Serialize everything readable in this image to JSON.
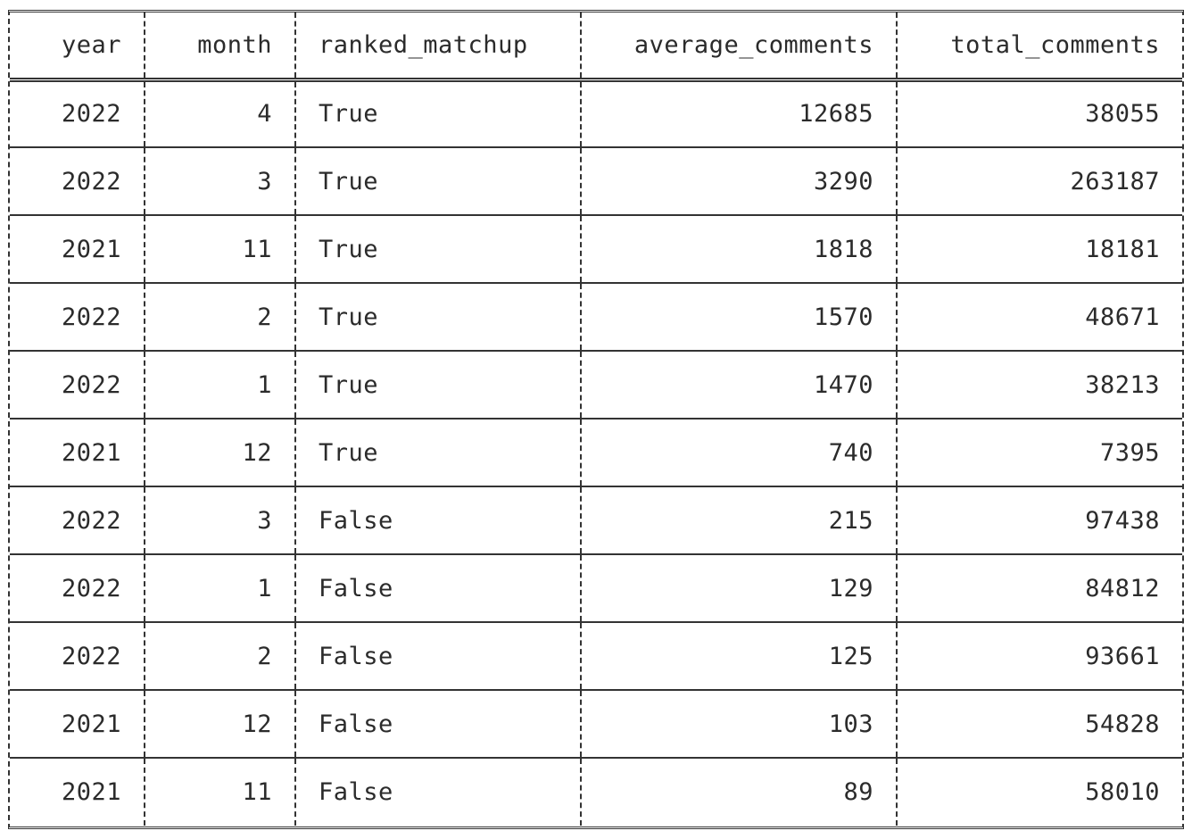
{
  "table": {
    "headers": [
      "year",
      "month",
      "ranked_matchup",
      "average_comments",
      "total_comments"
    ],
    "rows": [
      [
        "2022",
        "4",
        "True",
        "12685",
        "38055"
      ],
      [
        "2022",
        "3",
        "True",
        "3290",
        "263187"
      ],
      [
        "2021",
        "11",
        "True",
        "1818",
        "18181"
      ],
      [
        "2022",
        "2",
        "True",
        "1570",
        "48671"
      ],
      [
        "2022",
        "1",
        "True",
        "1470",
        "38213"
      ],
      [
        "2021",
        "12",
        "True",
        "740",
        "7395"
      ],
      [
        "2022",
        "3",
        "False",
        "215",
        "97438"
      ],
      [
        "2022",
        "1",
        "False",
        "129",
        "84812"
      ],
      [
        "2022",
        "2",
        "False",
        "125",
        "93661"
      ],
      [
        "2021",
        "12",
        "False",
        "103",
        "54828"
      ],
      [
        "2021",
        "11",
        "False",
        "89",
        "58010"
      ]
    ]
  }
}
